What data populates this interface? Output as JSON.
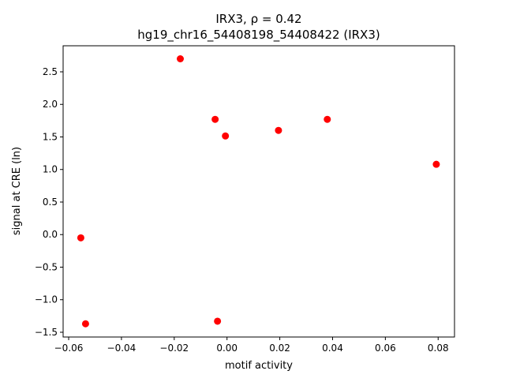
{
  "chart_data": {
    "type": "scatter",
    "title": "IRX3, ρ = 0.42",
    "subtitle": "hg19_chr16_54408198_54408422 (IRX3)",
    "x_label": "motif activity",
    "y_label": "signal at CRE (ln)",
    "color": "#ff0000",
    "x": [
      -0.0554,
      -0.0536,
      -0.0177,
      -0.0045,
      -0.0006,
      -0.0036,
      0.0195,
      0.038,
      0.0793
    ],
    "values": [
      -0.05,
      -1.37,
      2.7,
      1.77,
      1.515,
      -1.33,
      1.6,
      1.77,
      1.08
    ],
    "xlim": [
      -0.0621,
      0.0862
    ],
    "ylim": [
      -1.573,
      2.9
    ],
    "xticks": [
      {
        "value": -0.06,
        "label": "−0.06"
      },
      {
        "value": -0.04,
        "label": "−0.04"
      },
      {
        "value": -0.02,
        "label": "−0.02"
      },
      {
        "value": 0,
        "label": "0.00"
      },
      0.02,
      0.04,
      0.06,
      0.08
    ],
    "yticks": [
      {
        "value": -1.5,
        "label": "−1.5"
      },
      {
        "value": -1,
        "label": "−1.0"
      },
      {
        "value": -0.5,
        "label": "−0.5"
      },
      {
        "value": 0,
        "label": "0.0"
      },
      0.5,
      {
        "value": 1,
        "label": "1.0"
      },
      1.5,
      {
        "value": 2,
        "label": "2.0"
      },
      2.5
    ],
    "grid": false
  }
}
